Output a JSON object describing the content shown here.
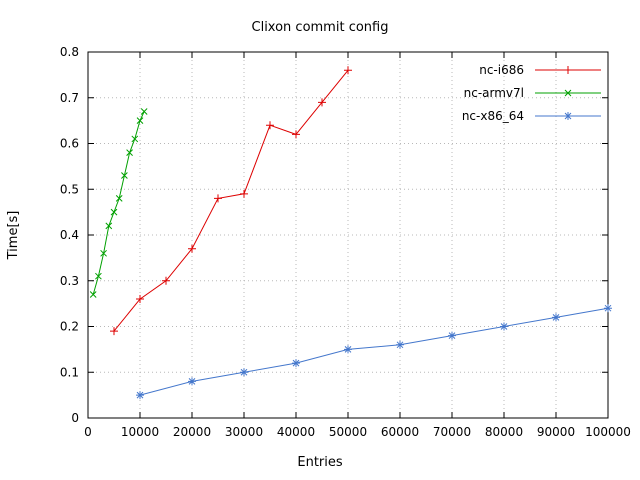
{
  "page": {
    "background": "#ffffff",
    "border_color": "#000000",
    "grid_color": "#b8b8b8",
    "text_color": "#000000"
  },
  "chart_data": {
    "type": "line",
    "title": "Clixon commit config",
    "xlabel": "Entries",
    "ylabel": "Time[s]",
    "xlim": [
      0,
      100000
    ],
    "ylim": [
      0,
      0.8
    ],
    "xticks": [
      0,
      10000,
      20000,
      30000,
      40000,
      50000,
      60000,
      70000,
      80000,
      90000,
      100000
    ],
    "yticks": [
      0,
      0.1,
      0.2,
      0.3,
      0.4,
      0.5,
      0.6,
      0.7,
      0.8
    ],
    "ytick_labels": [
      "0",
      "0.1",
      "0.2",
      "0.3",
      "0.4",
      "0.5",
      "0.6",
      "0.7",
      "0.8"
    ],
    "grid": true,
    "legend_position": "top-right",
    "series": [
      {
        "name": "nc-i686",
        "color": "#dd0000",
        "marker": "plus",
        "points": [
          [
            5000,
            0.19
          ],
          [
            10000,
            0.26
          ],
          [
            15000,
            0.3
          ],
          [
            20000,
            0.37
          ],
          [
            25000,
            0.48
          ],
          [
            30000,
            0.49
          ],
          [
            35000,
            0.64
          ],
          [
            40000,
            0.62
          ],
          [
            45000,
            0.69
          ],
          [
            50000,
            0.76
          ]
        ]
      },
      {
        "name": "nc-armv7l",
        "color": "#00a000",
        "marker": "x",
        "points": [
          [
            1000,
            0.27
          ],
          [
            2000,
            0.31
          ],
          [
            3000,
            0.36
          ],
          [
            4000,
            0.42
          ],
          [
            5000,
            0.45
          ],
          [
            6000,
            0.48
          ],
          [
            7000,
            0.53
          ],
          [
            8000,
            0.58
          ],
          [
            9000,
            0.61
          ],
          [
            10000,
            0.65
          ],
          [
            10800,
            0.67
          ]
        ]
      },
      {
        "name": "nc-x86_64",
        "color": "#4477cc",
        "marker": "asterisk",
        "points": [
          [
            10000,
            0.05
          ],
          [
            20000,
            0.08
          ],
          [
            30000,
            0.1
          ],
          [
            40000,
            0.12
          ],
          [
            50000,
            0.15
          ],
          [
            60000,
            0.16
          ],
          [
            70000,
            0.18
          ],
          [
            80000,
            0.2
          ],
          [
            90000,
            0.22
          ],
          [
            100000,
            0.24
          ]
        ]
      }
    ]
  }
}
